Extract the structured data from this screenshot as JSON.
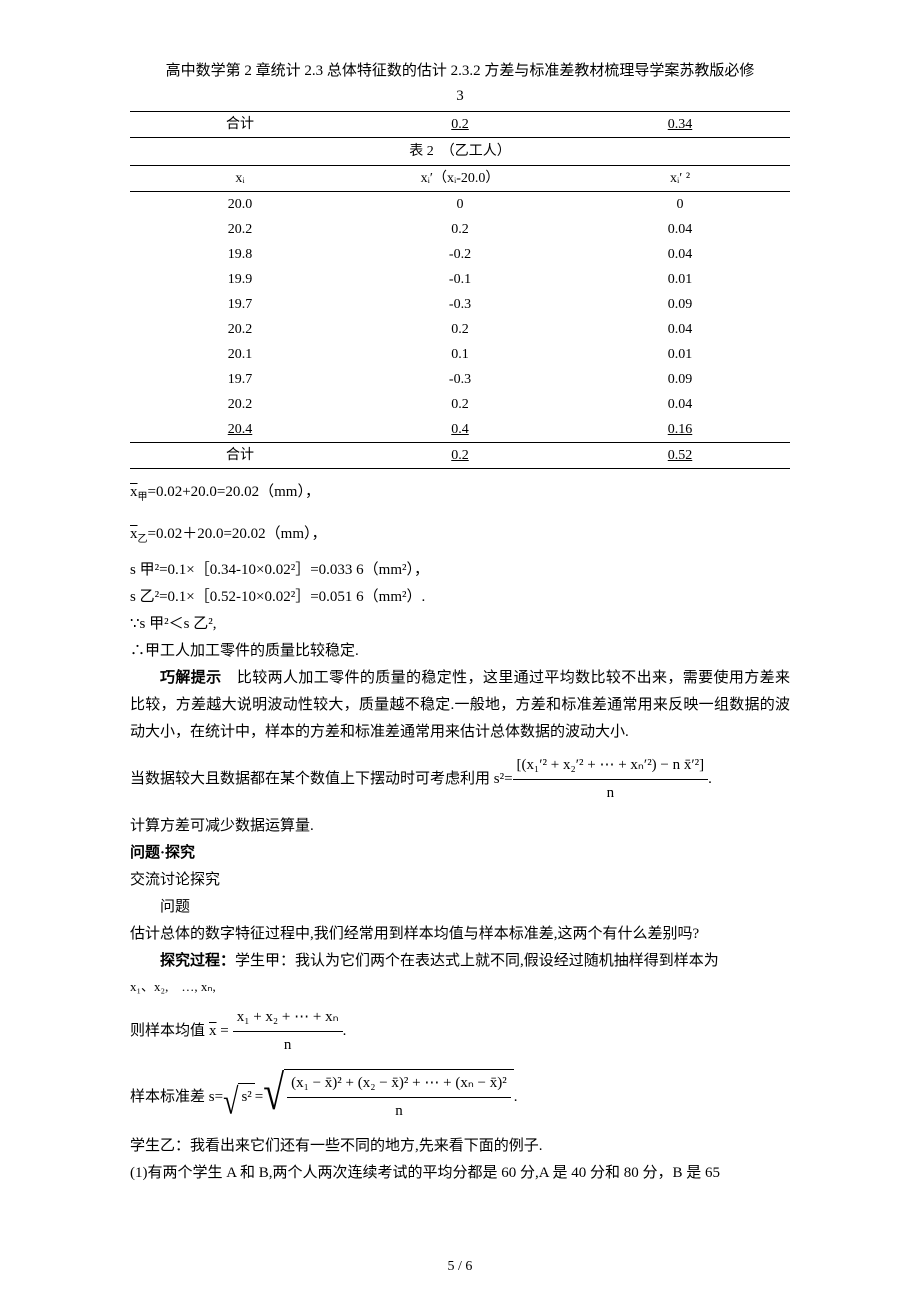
{
  "header": {
    "line1": "高中数学第 2 章统计 2.3 总体特征数的估计 2.3.2 方差与标准差教材梳理导学案苏教版必修",
    "line2": "3"
  },
  "table1_sum": {
    "c0": "合计",
    "c1": "0.2",
    "c2": "0.34"
  },
  "table2": {
    "title": "表 2　（乙工人）",
    "head": {
      "c0": "xᵢ",
      "c1": "xᵢ′（xᵢ-20.0）",
      "c2": "xᵢ′ ²"
    },
    "rows": [
      {
        "c0": "20.0",
        "c1": "0",
        "c2": "0"
      },
      {
        "c0": "20.2",
        "c1": "0.2",
        "c2": "0.04"
      },
      {
        "c0": "19.8",
        "c1": "-0.2",
        "c2": "0.04"
      },
      {
        "c0": "19.9",
        "c1": "-0.1",
        "c2": "0.01"
      },
      {
        "c0": "19.7",
        "c1": "-0.3",
        "c2": "0.09"
      },
      {
        "c0": "20.2",
        "c1": "0.2",
        "c2": "0.04"
      },
      {
        "c0": "20.1",
        "c1": "0.1",
        "c2": "0.01"
      },
      {
        "c0": "19.7",
        "c1": "-0.3",
        "c2": "0.09"
      },
      {
        "c0": "20.2",
        "c1": "0.2",
        "c2": "0.04"
      },
      {
        "c0": "20.4",
        "c1": "0.4",
        "c2": "0.16"
      }
    ],
    "sum": {
      "c0": "合计",
      "c1": "0.2",
      "c2": "0.52"
    }
  },
  "paras": {
    "p1": "=0.02+20.0=20.02（mm），",
    "p2": "=0.02＋20.0=20.02（mm），",
    "p3": "s 甲²=0.1×［0.34-10×0.02²］=0.033 6（mm²），",
    "p4": "s 乙²=0.1×［0.52-10×0.02²］=0.051 6（mm²）.",
    "p5": "∵s 甲²＜s 乙²,",
    "p6": "∴甲工人加工零件的质量比较稳定.",
    "p7a": "巧解提示",
    "p7b": "　比较两人加工零件的质量的稳定性，这里通过平均数比较不出来，需要使用方差来比较，方差越大说明波动性较大，质量越不稳定.一般地，方差和标准差通常用来反映一组数据的波动大小，在统计中，样本的方差和标准差通常用来估计总体数据的波动大小.",
    "p8": "当数据较大且数据都在某个数值上下摆动时可考虑利用 s²=",
    "p8num": "[(x₁′² + x₂′² + ⋯ + xₙ′²) − n x̄′²]",
    "p8den": "n",
    "p8end": ".",
    "p9": "计算方差可减少数据运算量.",
    "h1": "问题·探究",
    "p10": "交流讨论探究",
    "p11": "问题",
    "p12": "估计总体的数字特征过程中,我们经常用到样本均值与样本标准差,这两个有什么差别吗?",
    "p13a": "探究过程：",
    "p13b": "学生甲：我认为它们两个在表达式上就不同,假设经过随机抽样得到样本为",
    "p14": "x₁、x₂,　…, xₙ,",
    "p15a": "则样本均值",
    "p15num": "x₁ + x₂ + ⋯ + xₙ",
    "p15den": "n",
    "p15end": ".",
    "p16a": "样本标准差 s=",
    "p16s1": "s²",
    "p16eq": " =",
    "p16num": "(x₁ − x̄)² + (x₂ − x̄)² + ⋯ + (xₙ − x̄)²",
    "p16den": "n",
    "p16end": ".",
    "p17": "学生乙：我看出来它们还有一些不同的地方,先来看下面的例子.",
    "p18": "(1)有两个学生 A 和 B,两个人两次连续考试的平均分都是 60 分,A 是 40 分和 80 分，B 是 65"
  },
  "footer": "5 / 6"
}
